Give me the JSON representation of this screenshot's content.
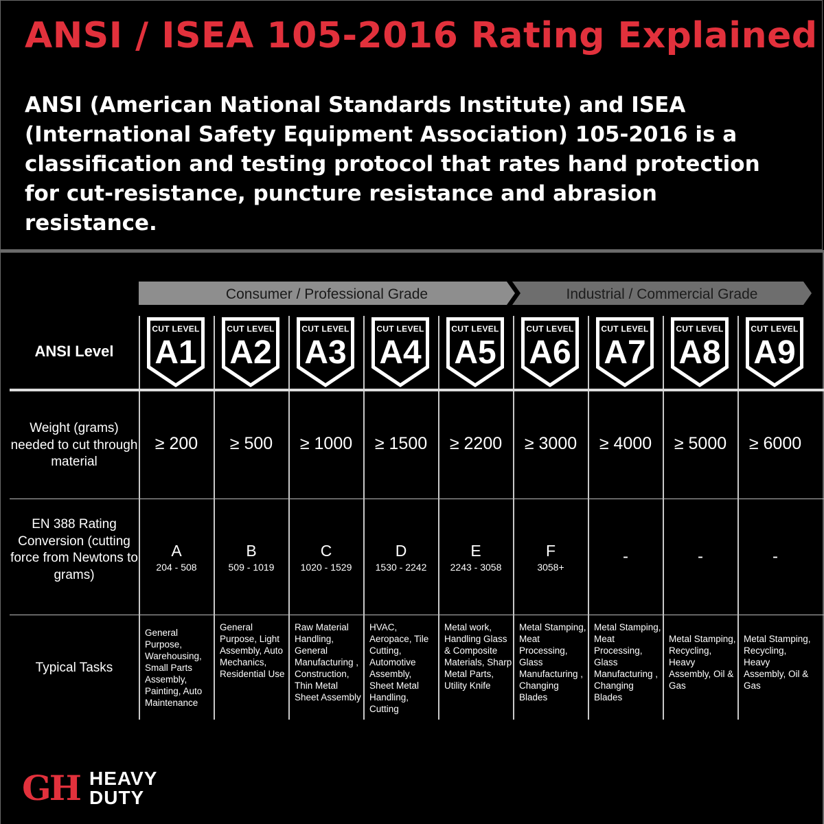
{
  "header": {
    "title": "ANSI / ISEA 105-2016 Rating Explained",
    "intro": "ANSI (American National Standards Institute) and ISEA (International Safety Equipment Association) 105-2016 is a classification and testing protocol that rates hand protection for cut-resistance, puncture resistance and abrasion resistance."
  },
  "grades": {
    "consumer": "Consumer / Professional Grade",
    "industrial": "Industrial / Commercial Grade"
  },
  "row_labels": {
    "ansi": "ANSI Level",
    "weight": "Weight (grams) needed to cut through material",
    "en388": "EN 388 Rating Conversion (cutting force from Newtons to grams)",
    "tasks": "Typical Tasks"
  },
  "badge_caption": "CUT LEVEL",
  "levels": [
    {
      "code": "A1",
      "weight": "≥ 200",
      "en_letter": "A",
      "en_range": "204 - 508",
      "tasks": "General Purpose, Warehousing, Small Parts Assembly, Painting, Auto Maintenance"
    },
    {
      "code": "A2",
      "weight": "≥ 500",
      "en_letter": "B",
      "en_range": "509 - 1019",
      "tasks": "General Purpose, Light Assembly, Auto Mechanics, Residential Use"
    },
    {
      "code": "A3",
      "weight": "≥ 1000",
      "en_letter": "C",
      "en_range": "1020 - 1529",
      "tasks": "Raw Material Handling, General Manufacturing , Construction, Thin Metal Sheet Assembly"
    },
    {
      "code": "A4",
      "weight": "≥ 1500",
      "en_letter": "D",
      "en_range": "1530 - 2242",
      "tasks": "HVAC, Aeropace, Tile Cutting, Automotive Assembly, Sheet Metal Handling, Cutting"
    },
    {
      "code": "A5",
      "weight": "≥ 2200",
      "en_letter": "E",
      "en_range": "2243 - 3058",
      "tasks": "Metal work, Handling Glass & Composite Materials, Sharp Metal Parts, Utility Knife"
    },
    {
      "code": "A6",
      "weight": "≥ 3000",
      "en_letter": "F",
      "en_range": "3058+",
      "tasks": "Metal Stamping, Meat Processing, Glass Manufacturing , Changing Blades"
    },
    {
      "code": "A7",
      "weight": "≥ 4000",
      "en_letter": "-",
      "en_range": "",
      "tasks": "Metal Stamping, Meat Processing, Glass Manufacturing , Changing Blades"
    },
    {
      "code": "A8",
      "weight": "≥ 5000",
      "en_letter": "-",
      "en_range": "",
      "tasks": "Metal Stamping, Recycling, Heavy Assembly, Oil & Gas"
    },
    {
      "code": "A9",
      "weight": "≥ 6000",
      "en_letter": "-",
      "en_range": "",
      "tasks": "Metal Stamping, Recycling, Heavy Assembly, Oil & Gas"
    }
  ],
  "brand": {
    "mark": "GH",
    "line1": "HEAVY",
    "line2": "DUTY"
  },
  "colors": {
    "accent": "#e2313c",
    "background": "#000000",
    "banner_consumer": "#8e8e8e",
    "banner_industrial": "#6e6e6e"
  }
}
